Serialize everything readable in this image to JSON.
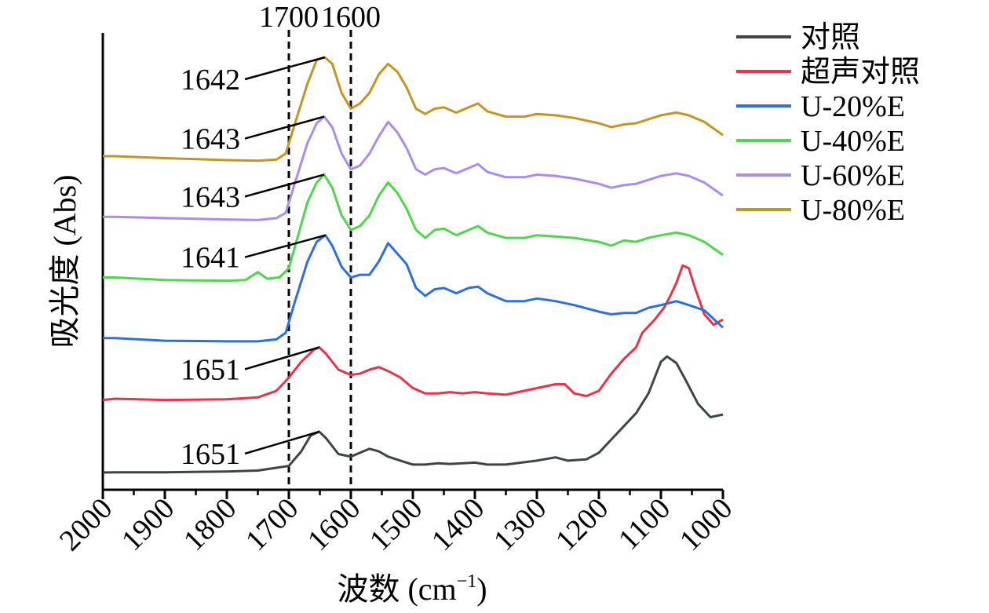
{
  "chart_data": {
    "type": "line",
    "title": "",
    "xlabel_prefix": "波数 (cm",
    "xlabel_sup": "−1",
    "xlabel_suffix": ")",
    "ylabel": "吸光度 (Abs)",
    "xlim": [
      2000,
      1000
    ],
    "x_reversed": true,
    "y_units": "arbitrary (stacked, offset)",
    "xticks": [
      "2000",
      "1900",
      "1800",
      "1700",
      "1600",
      "1500",
      "1400",
      "1300",
      "1200",
      "1100",
      "1000"
    ],
    "xtick_values": [
      2000,
      1900,
      1800,
      1700,
      1600,
      1500,
      1400,
      1300,
      1200,
      1100,
      1000
    ],
    "reference_lines": [
      {
        "x": 1700,
        "label": "1700"
      },
      {
        "x": 1600,
        "label": "1600"
      }
    ],
    "legend_position": "top-right",
    "series": [
      {
        "name": "对照",
        "color": "#3f4448",
        "baseline": 0.0,
        "peak_label": "1651",
        "points": [
          [
            2000,
            0.0
          ],
          [
            1980,
            0.001
          ],
          [
            1900,
            0.002
          ],
          [
            1800,
            0.008
          ],
          [
            1750,
            0.015
          ],
          [
            1700,
            0.05
          ],
          [
            1680,
            0.16
          ],
          [
            1665,
            0.28
          ],
          [
            1651,
            0.31
          ],
          [
            1640,
            0.26
          ],
          [
            1620,
            0.14
          ],
          [
            1600,
            0.12
          ],
          [
            1585,
            0.15
          ],
          [
            1570,
            0.18
          ],
          [
            1555,
            0.16
          ],
          [
            1540,
            0.12
          ],
          [
            1520,
            0.09
          ],
          [
            1500,
            0.06
          ],
          [
            1480,
            0.06
          ],
          [
            1460,
            0.07
          ],
          [
            1440,
            0.065
          ],
          [
            1420,
            0.07
          ],
          [
            1400,
            0.075
          ],
          [
            1380,
            0.06
          ],
          [
            1350,
            0.06
          ],
          [
            1300,
            0.09
          ],
          [
            1270,
            0.115
          ],
          [
            1250,
            0.09
          ],
          [
            1220,
            0.1
          ],
          [
            1200,
            0.15
          ],
          [
            1180,
            0.25
          ],
          [
            1160,
            0.35
          ],
          [
            1140,
            0.45
          ],
          [
            1120,
            0.6
          ],
          [
            1100,
            0.84
          ],
          [
            1090,
            0.88
          ],
          [
            1075,
            0.83
          ],
          [
            1060,
            0.7
          ],
          [
            1040,
            0.52
          ],
          [
            1020,
            0.42
          ],
          [
            1000,
            0.44
          ]
        ]
      },
      {
        "name": "超声对照",
        "color": "#e8334b",
        "baseline": 0.55,
        "peak_label": "1651",
        "points": [
          [
            2000,
            0.55
          ],
          [
            1980,
            0.56
          ],
          [
            1900,
            0.55
          ],
          [
            1800,
            0.555
          ],
          [
            1750,
            0.57
          ],
          [
            1720,
            0.62
          ],
          [
            1700,
            0.72
          ],
          [
            1680,
            0.84
          ],
          [
            1660,
            0.93
          ],
          [
            1651,
            0.95
          ],
          [
            1640,
            0.9
          ],
          [
            1620,
            0.78
          ],
          [
            1600,
            0.74
          ],
          [
            1585,
            0.75
          ],
          [
            1570,
            0.78
          ],
          [
            1555,
            0.8
          ],
          [
            1540,
            0.77
          ],
          [
            1520,
            0.72
          ],
          [
            1500,
            0.64
          ],
          [
            1480,
            0.6
          ],
          [
            1460,
            0.6
          ],
          [
            1440,
            0.61
          ],
          [
            1420,
            0.6
          ],
          [
            1400,
            0.61
          ],
          [
            1380,
            0.6
          ],
          [
            1350,
            0.59
          ],
          [
            1300,
            0.64
          ],
          [
            1270,
            0.67
          ],
          [
            1255,
            0.67
          ],
          [
            1240,
            0.6
          ],
          [
            1220,
            0.58
          ],
          [
            1200,
            0.62
          ],
          [
            1180,
            0.75
          ],
          [
            1160,
            0.86
          ],
          [
            1140,
            0.95
          ],
          [
            1130,
            1.06
          ],
          [
            1110,
            1.16
          ],
          [
            1095,
            1.25
          ],
          [
            1085,
            1.34
          ],
          [
            1075,
            1.44
          ],
          [
            1065,
            1.57
          ],
          [
            1055,
            1.55
          ],
          [
            1045,
            1.4
          ],
          [
            1030,
            1.2
          ],
          [
            1015,
            1.12
          ],
          [
            1000,
            1.16
          ]
        ]
      },
      {
        "name": "U-20%E",
        "color": "#2b6fe0",
        "baseline": 1.02,
        "peak_label": "1641",
        "points": [
          [
            2000,
            1.02
          ],
          [
            1980,
            1.02
          ],
          [
            1900,
            1.0
          ],
          [
            1800,
            0.995
          ],
          [
            1750,
            0.995
          ],
          [
            1720,
            1.01
          ],
          [
            1705,
            1.06
          ],
          [
            1690,
            1.3
          ],
          [
            1670,
            1.6
          ],
          [
            1655,
            1.75
          ],
          [
            1641,
            1.8
          ],
          [
            1630,
            1.72
          ],
          [
            1615,
            1.56
          ],
          [
            1600,
            1.48
          ],
          [
            1585,
            1.5
          ],
          [
            1570,
            1.5
          ],
          [
            1555,
            1.6
          ],
          [
            1540,
            1.74
          ],
          [
            1525,
            1.66
          ],
          [
            1510,
            1.58
          ],
          [
            1495,
            1.4
          ],
          [
            1480,
            1.34
          ],
          [
            1465,
            1.39
          ],
          [
            1450,
            1.4
          ],
          [
            1430,
            1.36
          ],
          [
            1410,
            1.4
          ],
          [
            1395,
            1.41
          ],
          [
            1380,
            1.36
          ],
          [
            1350,
            1.3
          ],
          [
            1320,
            1.3
          ],
          [
            1300,
            1.32
          ],
          [
            1270,
            1.3
          ],
          [
            1240,
            1.27
          ],
          [
            1200,
            1.22
          ],
          [
            1180,
            1.2
          ],
          [
            1160,
            1.21
          ],
          [
            1140,
            1.21
          ],
          [
            1120,
            1.25
          ],
          [
            1100,
            1.27
          ],
          [
            1075,
            1.3
          ],
          [
            1055,
            1.27
          ],
          [
            1030,
            1.23
          ],
          [
            1000,
            1.1
          ]
        ]
      },
      {
        "name": "U-40%E",
        "color": "#4fd64a",
        "baseline": 1.48,
        "peak_label": "1643",
        "points": [
          [
            2000,
            1.48
          ],
          [
            1980,
            1.48
          ],
          [
            1900,
            1.46
          ],
          [
            1800,
            1.455
          ],
          [
            1770,
            1.46
          ],
          [
            1750,
            1.52
          ],
          [
            1735,
            1.47
          ],
          [
            1715,
            1.48
          ],
          [
            1700,
            1.55
          ],
          [
            1685,
            1.8
          ],
          [
            1670,
            2.05
          ],
          [
            1655,
            2.2
          ],
          [
            1643,
            2.26
          ],
          [
            1630,
            2.16
          ],
          [
            1615,
            1.95
          ],
          [
            1600,
            1.84
          ],
          [
            1585,
            1.87
          ],
          [
            1570,
            1.95
          ],
          [
            1555,
            2.1
          ],
          [
            1540,
            2.2
          ],
          [
            1525,
            2.12
          ],
          [
            1510,
            2.0
          ],
          [
            1495,
            1.84
          ],
          [
            1480,
            1.78
          ],
          [
            1465,
            1.84
          ],
          [
            1450,
            1.85
          ],
          [
            1430,
            1.8
          ],
          [
            1410,
            1.84
          ],
          [
            1395,
            1.87
          ],
          [
            1380,
            1.82
          ],
          [
            1350,
            1.78
          ],
          [
            1320,
            1.78
          ],
          [
            1300,
            1.8
          ],
          [
            1270,
            1.79
          ],
          [
            1240,
            1.78
          ],
          [
            1200,
            1.75
          ],
          [
            1180,
            1.72
          ],
          [
            1160,
            1.76
          ],
          [
            1140,
            1.75
          ],
          [
            1120,
            1.78
          ],
          [
            1100,
            1.8
          ],
          [
            1075,
            1.82
          ],
          [
            1055,
            1.8
          ],
          [
            1030,
            1.75
          ],
          [
            1000,
            1.65
          ]
        ]
      },
      {
        "name": "U-60%E",
        "color": "#a88cf0",
        "baseline": 1.94,
        "peak_label": "1643",
        "points": [
          [
            2000,
            1.94
          ],
          [
            1980,
            1.94
          ],
          [
            1900,
            1.93
          ],
          [
            1800,
            1.92
          ],
          [
            1750,
            1.915
          ],
          [
            1720,
            1.93
          ],
          [
            1705,
            1.97
          ],
          [
            1690,
            2.2
          ],
          [
            1670,
            2.5
          ],
          [
            1655,
            2.65
          ],
          [
            1643,
            2.7
          ],
          [
            1630,
            2.62
          ],
          [
            1615,
            2.42
          ],
          [
            1600,
            2.3
          ],
          [
            1585,
            2.33
          ],
          [
            1570,
            2.42
          ],
          [
            1555,
            2.55
          ],
          [
            1540,
            2.66
          ],
          [
            1525,
            2.58
          ],
          [
            1510,
            2.46
          ],
          [
            1495,
            2.3
          ],
          [
            1480,
            2.26
          ],
          [
            1465,
            2.3
          ],
          [
            1450,
            2.31
          ],
          [
            1430,
            2.27
          ],
          [
            1410,
            2.31
          ],
          [
            1395,
            2.34
          ],
          [
            1380,
            2.28
          ],
          [
            1350,
            2.24
          ],
          [
            1320,
            2.24
          ],
          [
            1300,
            2.26
          ],
          [
            1270,
            2.25
          ],
          [
            1240,
            2.23
          ],
          [
            1200,
            2.19
          ],
          [
            1180,
            2.16
          ],
          [
            1160,
            2.18
          ],
          [
            1140,
            2.19
          ],
          [
            1120,
            2.22
          ],
          [
            1100,
            2.25
          ],
          [
            1075,
            2.27
          ],
          [
            1055,
            2.25
          ],
          [
            1030,
            2.2
          ],
          [
            1000,
            2.1
          ]
        ]
      },
      {
        "name": "U-80%E",
        "color": "#c69420",
        "baseline": 2.4,
        "peak_label": "1642",
        "points": [
          [
            2000,
            2.4
          ],
          [
            1980,
            2.4
          ],
          [
            1900,
            2.385
          ],
          [
            1800,
            2.37
          ],
          [
            1750,
            2.365
          ],
          [
            1720,
            2.375
          ],
          [
            1705,
            2.42
          ],
          [
            1690,
            2.65
          ],
          [
            1670,
            2.95
          ],
          [
            1655,
            3.13
          ],
          [
            1642,
            3.15
          ],
          [
            1630,
            3.1
          ],
          [
            1615,
            2.88
          ],
          [
            1600,
            2.76
          ],
          [
            1585,
            2.8
          ],
          [
            1570,
            2.88
          ],
          [
            1555,
            3.02
          ],
          [
            1540,
            3.1
          ],
          [
            1525,
            3.04
          ],
          [
            1510,
            2.92
          ],
          [
            1495,
            2.76
          ],
          [
            1480,
            2.72
          ],
          [
            1465,
            2.76
          ],
          [
            1450,
            2.77
          ],
          [
            1430,
            2.73
          ],
          [
            1410,
            2.77
          ],
          [
            1395,
            2.8
          ],
          [
            1380,
            2.74
          ],
          [
            1350,
            2.7
          ],
          [
            1320,
            2.7
          ],
          [
            1300,
            2.72
          ],
          [
            1270,
            2.71
          ],
          [
            1240,
            2.69
          ],
          [
            1200,
            2.65
          ],
          [
            1180,
            2.62
          ],
          [
            1160,
            2.64
          ],
          [
            1140,
            2.65
          ],
          [
            1120,
            2.68
          ],
          [
            1100,
            2.71
          ],
          [
            1075,
            2.73
          ],
          [
            1055,
            2.71
          ],
          [
            1030,
            2.66
          ],
          [
            1000,
            2.56
          ]
        ]
      }
    ]
  }
}
